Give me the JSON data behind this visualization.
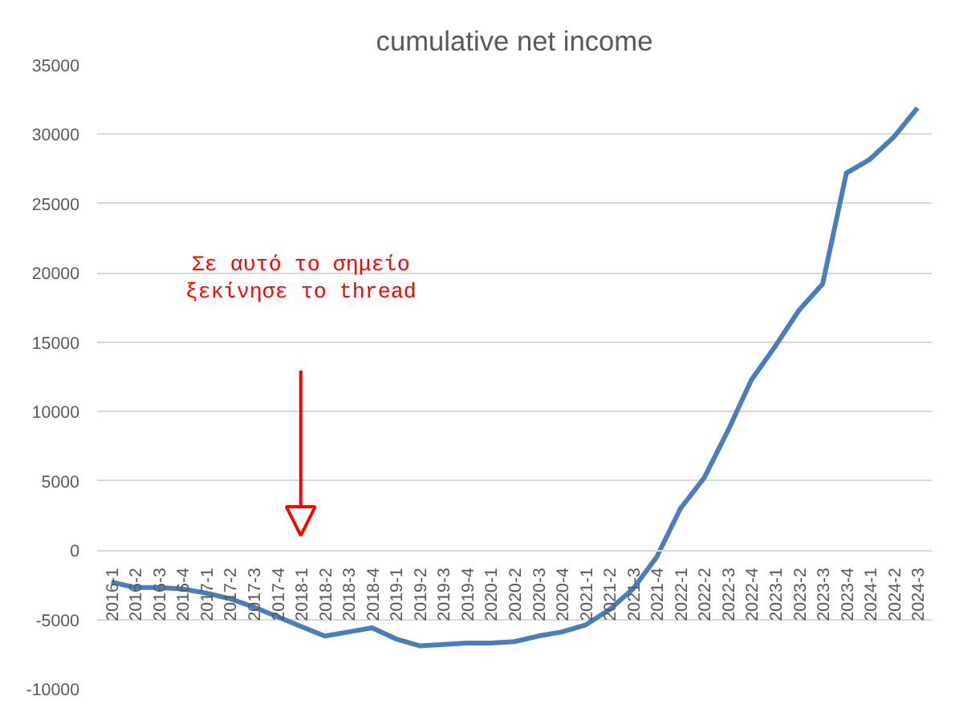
{
  "chart_data": {
    "type": "line",
    "title": "cumulative net income",
    "categories": [
      "2016-1",
      "2016-2",
      "2016-3",
      "2016-4",
      "2017-1",
      "2017-2",
      "2017-3",
      "2017-4",
      "2018-1",
      "2018-2",
      "2018-3",
      "2018-4",
      "2019-1",
      "2019-2",
      "2019-3",
      "2019-4",
      "2020-1",
      "2020-2",
      "2020-3",
      "2020-4",
      "2021-1",
      "2021-2",
      "2021-3",
      "2021-4",
      "2022-1",
      "2022-2",
      "2022-3",
      "2022-4",
      "2023-1",
      "2023-2",
      "2023-3",
      "2023-4",
      "2024-1",
      "2024-2",
      "2024-3"
    ],
    "series": [
      {
        "color": "#4a7ebb",
        "values": [
          -2300,
          -2700,
          -2700,
          -2800,
          -3100,
          -3500,
          -4100,
          -4800,
          -5500,
          -6200,
          -5900,
          -5600,
          -6400,
          -6900,
          -6800,
          -6700,
          -6700,
          -6600,
          -6200,
          -5900,
          -5400,
          -4300,
          -2800,
          -500,
          3000,
          5200,
          8600,
          12300,
          14700,
          17300,
          19200,
          27200,
          28200,
          29800,
          31900
        ]
      }
    ],
    "ylim": [
      -10000,
      35000
    ],
    "yticks": [
      -10000,
      -5000,
      0,
      5000,
      10000,
      15000,
      20000,
      25000,
      30000,
      35000
    ],
    "grid": "y",
    "marker": "none",
    "line_style": "solid",
    "annotations": [
      "Σε αυτό το σημείο\nξεκίνησε το thread"
    ]
  }
}
